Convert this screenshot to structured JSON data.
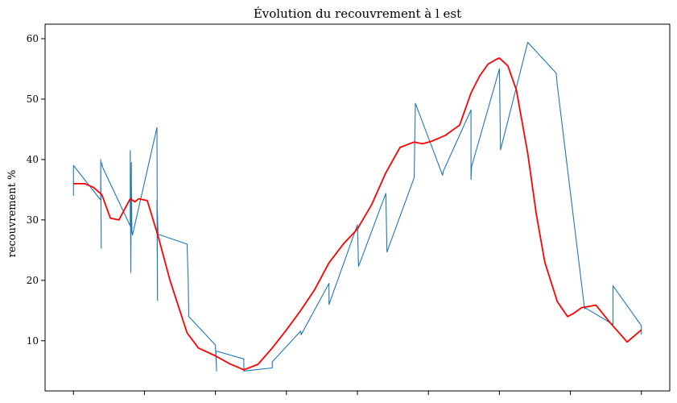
{
  "chart_data": {
    "type": "line",
    "title": "Évolution du recouvrement à l est",
    "xlabel": "",
    "ylabel": "recouvrement %",
    "ylim": [
      1.7,
      62.4
    ],
    "xlim": [
      -0.05,
      1.05
    ],
    "yticks": [
      10,
      20,
      30,
      40,
      50,
      60
    ],
    "xticks": [
      0.0,
      0.125,
      0.25,
      0.375,
      0.5,
      0.625,
      0.75,
      0.875,
      1.0
    ],
    "xtick_labels_visible": false,
    "grid": false,
    "legend": "none",
    "series": [
      {
        "style": "raw",
        "color": "#1f77b4",
        "x": [
          0.0,
          0.0,
          0.048,
          0.048,
          0.049,
          0.048,
          0.05,
          0.051,
          0.05,
          0.1,
          0.1,
          0.101,
          0.102,
          0.102,
          0.103,
          0.104,
          0.147,
          0.148,
          0.147,
          0.149,
          0.15,
          0.2,
          0.202,
          0.203,
          0.25,
          0.252,
          0.251,
          0.3,
          0.3,
          0.35,
          0.35,
          0.4,
          0.401,
          0.402,
          0.45,
          0.45,
          0.5,
          0.502,
          0.55,
          0.552,
          0.6,
          0.602,
          0.65,
          0.651,
          0.7,
          0.7,
          0.701,
          0.75,
          0.752,
          0.8,
          0.85,
          0.852,
          0.9,
          0.902,
          0.95,
          0.95,
          1.0,
          1.0
        ],
        "y": [
          34.0,
          39.0,
          33.3,
          40.0,
          25.3,
          39.5,
          39.4,
          39.0,
          39.0,
          29.0,
          41.5,
          21.3,
          39.5,
          36.0,
          28.0,
          27.5,
          45.3,
          16.7,
          33.2,
          27.6,
          27.6,
          26.0,
          20.0,
          14.0,
          9.3,
          5.0,
          8.3,
          7.0,
          5.0,
          5.5,
          6.5,
          11.6,
          11.0,
          11.2,
          19.5,
          16.0,
          29.2,
          22.3,
          34.4,
          24.7,
          37.0,
          49.3,
          37.4,
          38.0,
          48.2,
          36.7,
          38.8,
          55.0,
          41.6,
          59.4,
          54.3,
          52.3,
          15.3,
          15.4,
          12.7,
          19.1,
          12.5,
          11.0
        ]
      },
      {
        "style": "smoothed",
        "color": "#ff0000",
        "x": [
          0.0,
          0.02,
          0.035,
          0.05,
          0.065,
          0.08,
          0.1,
          0.108,
          0.115,
          0.13,
          0.15,
          0.17,
          0.2,
          0.22,
          0.25,
          0.275,
          0.3,
          0.325,
          0.35,
          0.375,
          0.4,
          0.425,
          0.45,
          0.475,
          0.5,
          0.525,
          0.55,
          0.575,
          0.6,
          0.615,
          0.63,
          0.655,
          0.68,
          0.7,
          0.715,
          0.73,
          0.745,
          0.75,
          0.765,
          0.78,
          0.8,
          0.815,
          0.83,
          0.852,
          0.87,
          0.88,
          0.895,
          0.92,
          0.945,
          0.975,
          1.0
        ],
        "y": [
          36.0,
          36.0,
          35.4,
          34.2,
          30.3,
          30.0,
          33.5,
          33.0,
          33.5,
          33.2,
          27.0,
          20.0,
          11.3,
          8.8,
          7.5,
          6.2,
          5.2,
          6.1,
          8.8,
          11.8,
          15.0,
          18.5,
          22.9,
          26.0,
          28.5,
          32.5,
          37.8,
          42.0,
          42.9,
          42.6,
          43.0,
          44.0,
          45.7,
          51.0,
          53.8,
          55.8,
          56.6,
          56.8,
          55.5,
          51.5,
          41.0,
          31.0,
          23.0,
          16.5,
          14.0,
          14.5,
          15.5,
          15.9,
          13.0,
          9.8,
          11.8
        ]
      }
    ]
  }
}
